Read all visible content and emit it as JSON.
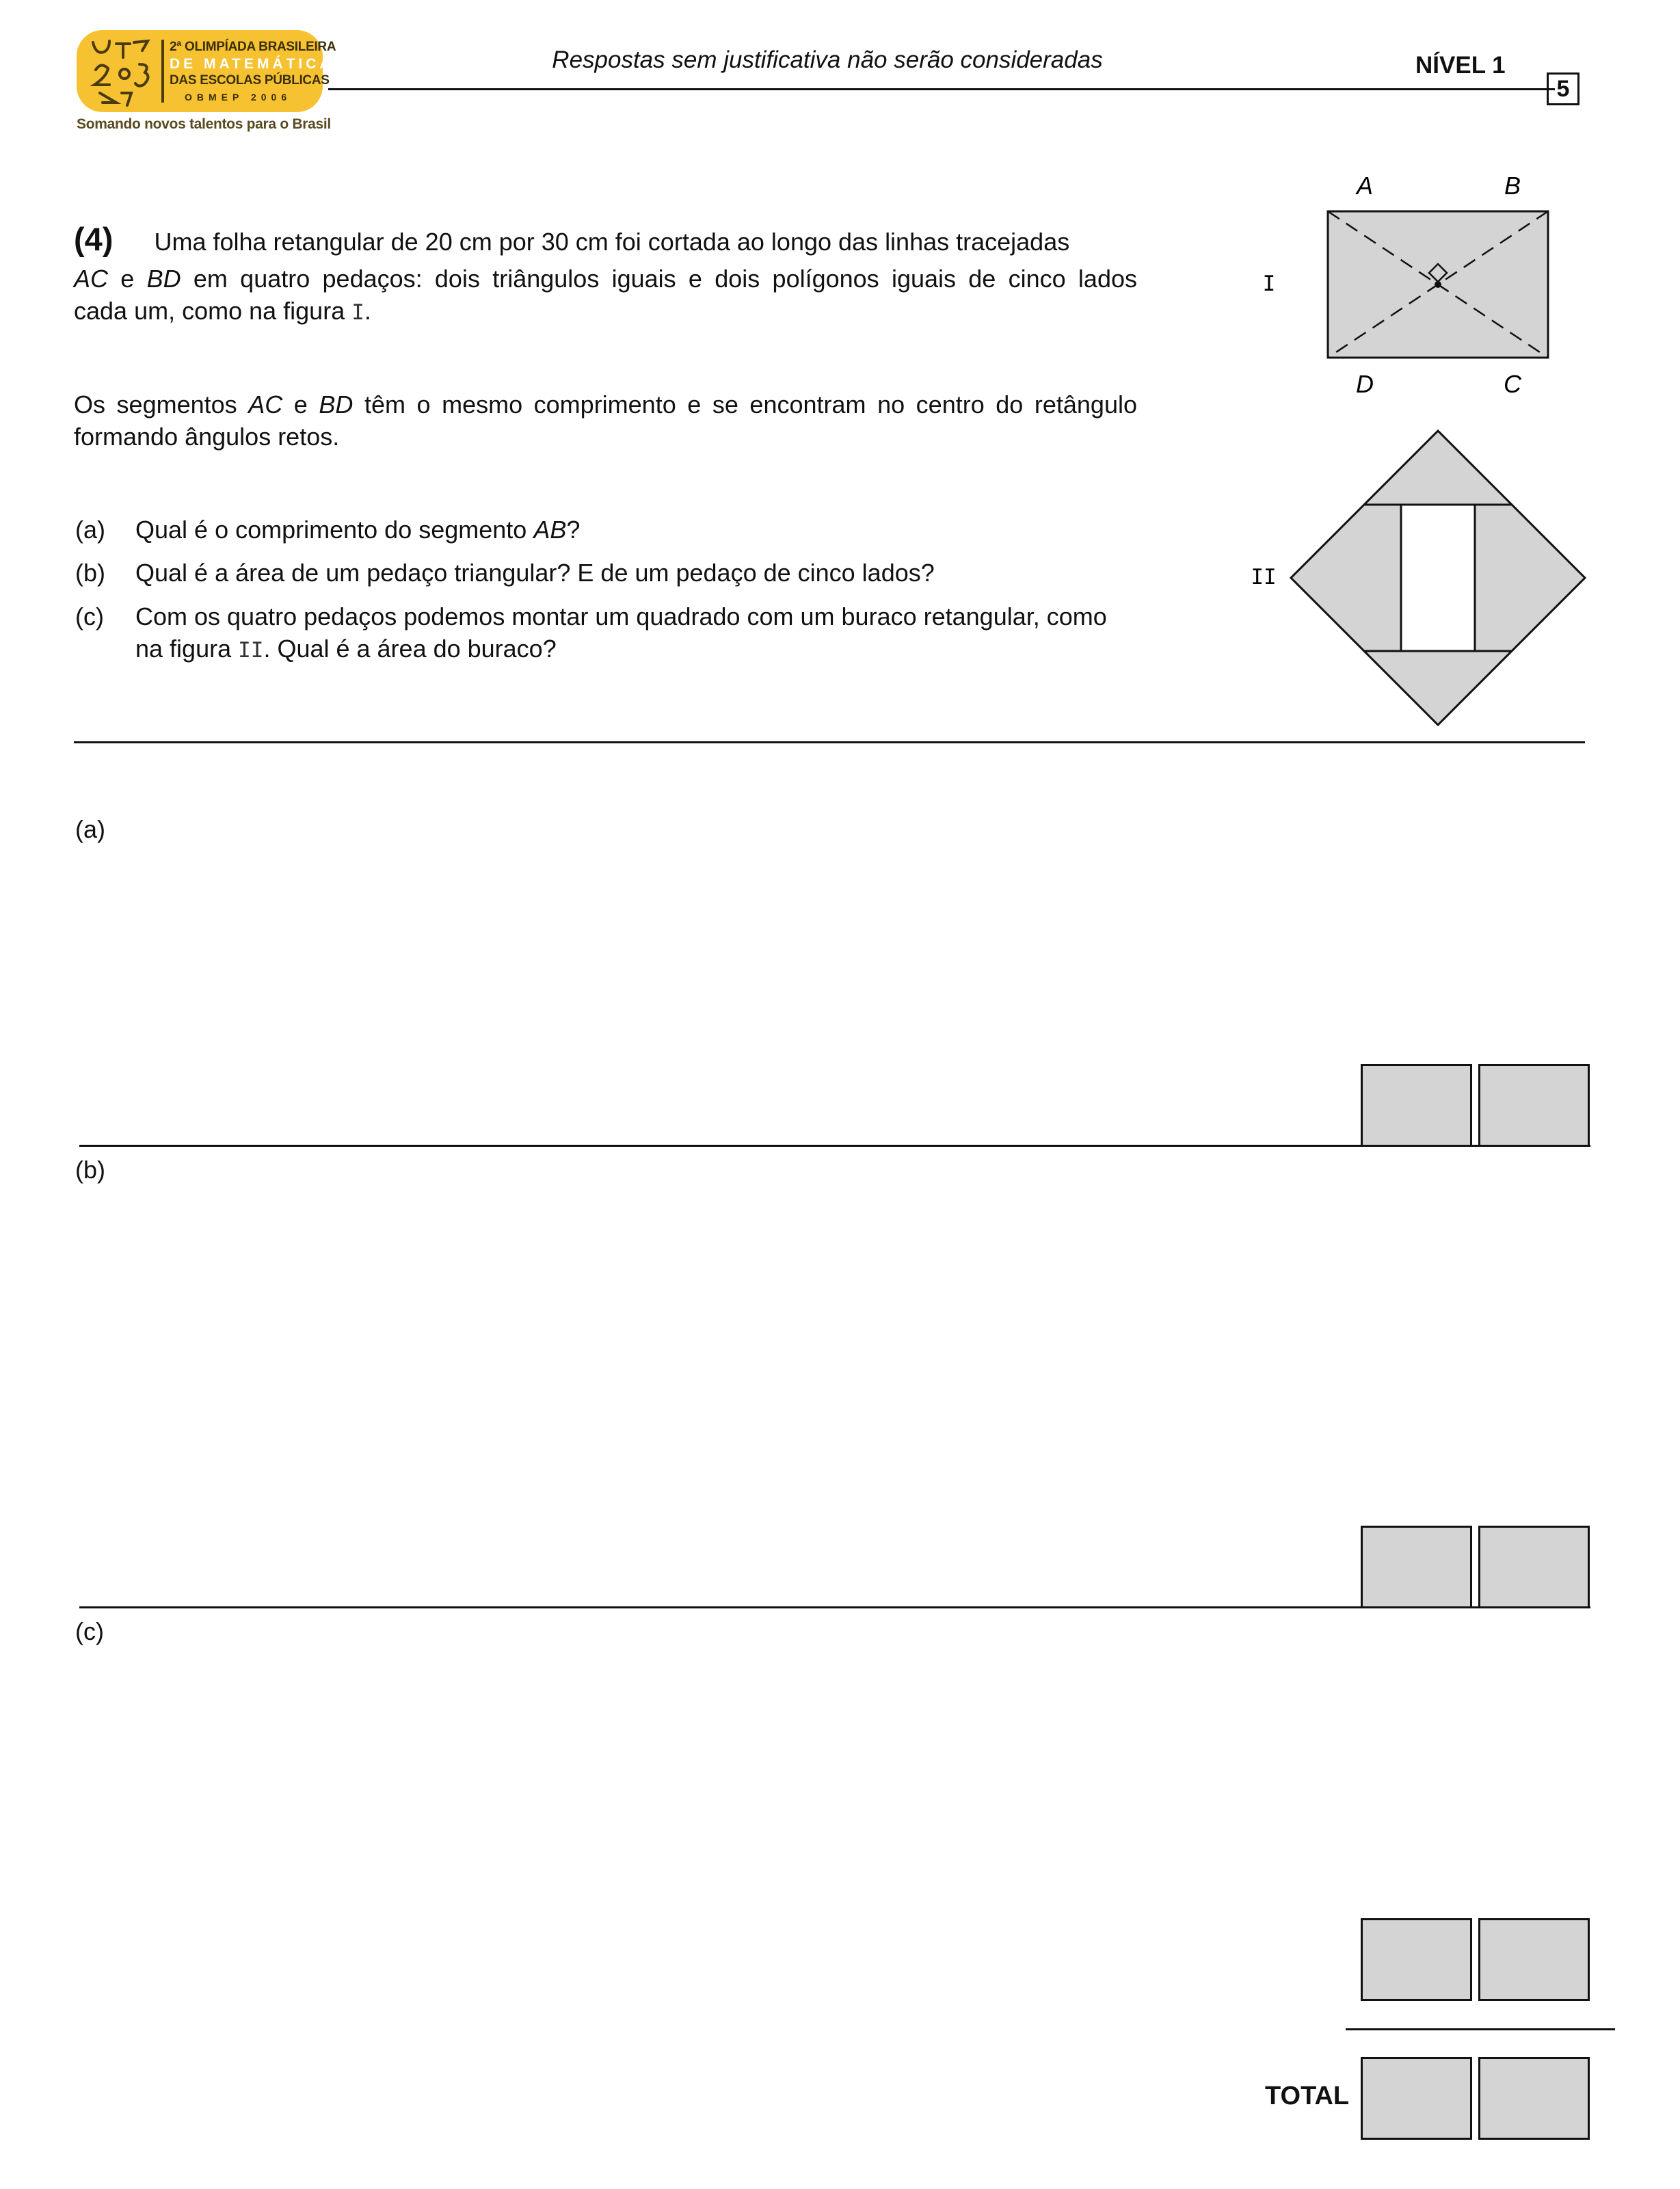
{
  "header": {
    "logo": {
      "line1": "2ª OLIMPÍADA BRASILEIRA",
      "line2": "DE MATEMÁTICA",
      "line3": "DAS ESCOLAS PÚBLICAS",
      "line4": "OBMEP 2006",
      "tagline": "Somando novos talentos para o Brasil"
    },
    "note": "Respostas sem justificativa não serão consideradas",
    "level": "NÍVEL 1",
    "page_number": "5"
  },
  "question": {
    "number": "(4)",
    "line1": "Uma folha retangular de 20 cm por 30 cm foi cortada ao longo das linhas tracejadas",
    "line2": "AC e BD em quatro pedaços: dois triângulos iguais e dois polígonos iguais de cinco lados",
    "line3_pre": "cada um, como na figura ",
    "fig1_ref": "I",
    "line3_post": ".",
    "line4": "Os segmentos AC e BD têm o mesmo comprimento e se encontram no centro do retângulo",
    "line5": "formando ângulos retos.",
    "items": [
      {
        "label": "(a)",
        "text_pre": "Qual é o comprimento do segmento ",
        "italic": "AB",
        "text_post": "?"
      },
      {
        "label": "(b)",
        "text": "Qual é a área de um pedaço triangular? E de um pedaço de cinco lados?"
      },
      {
        "label": "(c)",
        "line1": "Com os quatro pedaços podemos montar um quadrado com um buraco retangular, como",
        "line2_pre": "na figura ",
        "fig2_ref": "II",
        "line2_post": ". Qual é a área do buraco?"
      }
    ]
  },
  "figures": {
    "fig1": {
      "label": "I",
      "points": {
        "A": "A",
        "B": "B",
        "C": "C",
        "D": "D"
      }
    },
    "fig2": {
      "label": "II"
    }
  },
  "answers": {
    "a_label": "(a)",
    "b_label": "(b)",
    "c_label": "(c)",
    "total_label": "TOTAL"
  }
}
